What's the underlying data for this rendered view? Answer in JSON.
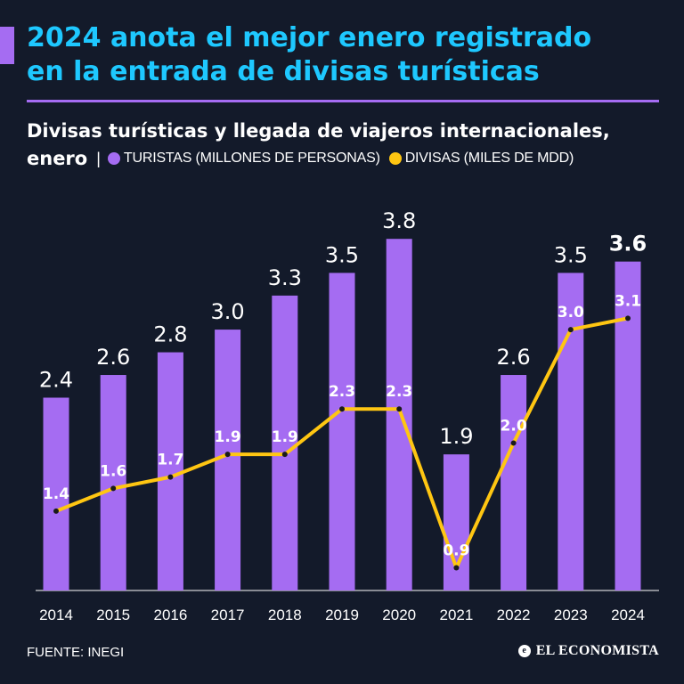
{
  "headline": {
    "line1": "2024 anota el mejor enero registrado",
    "line2": "en la entrada de divisas turísticas"
  },
  "subtitle": {
    "line1": "Divisas turísticas y llegada de viajeros internacionales,",
    "word": "enero",
    "separator": "|"
  },
  "colors": {
    "bars": "#a56cf2",
    "line": "#ffc612",
    "headline": "#1ec8ff",
    "background": "#131a2a"
  },
  "chart_data": {
    "type": "bar",
    "categories": [
      "2014",
      "2015",
      "2016",
      "2017",
      "2018",
      "2019",
      "2020",
      "2021",
      "2022",
      "2023",
      "2024"
    ],
    "series": [
      {
        "name": "TURISTAS (MILLONES DE PERSONAS)",
        "type": "bar",
        "color": "#a56cf2",
        "values": [
          2.4,
          2.6,
          2.8,
          3.0,
          3.3,
          3.5,
          3.8,
          1.9,
          2.6,
          3.5,
          3.6
        ],
        "labels": [
          "2.4",
          "2.6",
          "2.8",
          "3.0",
          "3.3",
          "3.5",
          "3.8",
          "1.9",
          "2.6",
          "3.5",
          "3.6"
        ]
      },
      {
        "name": "DIVISAS (MILES DE MDD)",
        "type": "line",
        "color": "#ffc612",
        "values": [
          1.4,
          1.6,
          1.7,
          1.9,
          1.9,
          2.3,
          2.3,
          0.9,
          2.0,
          3.0,
          3.1
        ],
        "labels": [
          "1.4",
          "1.6",
          "1.7",
          "1.9",
          "1.9",
          "2.3",
          "2.3",
          "0.9",
          "2.0",
          "3.0",
          "3.1"
        ]
      }
    ],
    "ylim": [
      0.7,
      4.1
    ],
    "highlight_category": "2024",
    "legend_position": "top"
  },
  "footer": {
    "source": "FUENTE: INEGI",
    "brand": "EL ECONOMISTA",
    "brand_icon": "e-icon"
  }
}
